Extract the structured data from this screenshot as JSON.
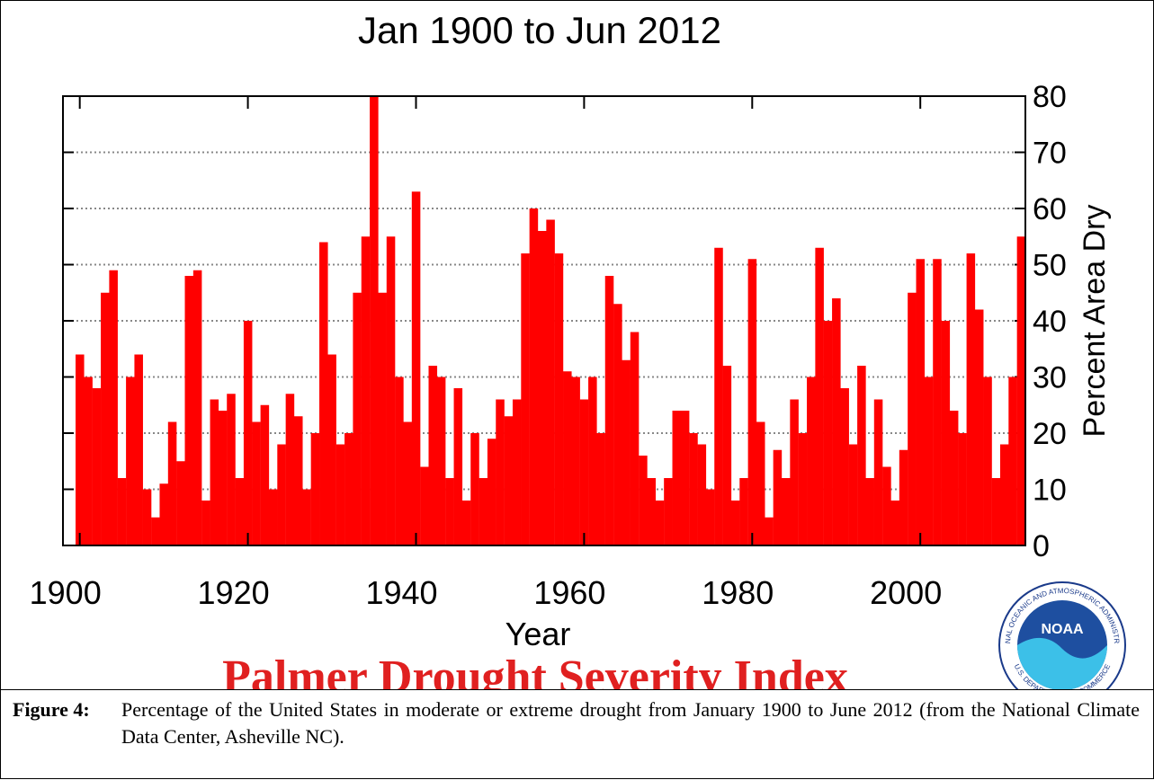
{
  "chart_data": {
    "type": "bar",
    "title": "Jan 1900 to Jun 2012",
    "x_label": "Year",
    "y_label": "Percent Area Dry",
    "banner": "Palmer Drought Severity Index",
    "color": "#ff0000",
    "grid": true,
    "x": [
      1900,
      1901,
      1902,
      1903,
      1904,
      1905,
      1906,
      1907,
      1908,
      1909,
      1910,
      1911,
      1912,
      1913,
      1914,
      1915,
      1916,
      1917,
      1918,
      1919,
      1920,
      1921,
      1922,
      1923,
      1924,
      1925,
      1926,
      1927,
      1928,
      1929,
      1930,
      1931,
      1932,
      1933,
      1934,
      1935,
      1936,
      1937,
      1938,
      1939,
      1940,
      1941,
      1942,
      1943,
      1944,
      1945,
      1946,
      1947,
      1948,
      1949,
      1950,
      1951,
      1952,
      1953,
      1954,
      1955,
      1956,
      1957,
      1958,
      1959,
      1960,
      1961,
      1962,
      1963,
      1964,
      1965,
      1966,
      1967,
      1968,
      1969,
      1970,
      1971,
      1972,
      1973,
      1974,
      1975,
      1976,
      1977,
      1978,
      1979,
      1980,
      1981,
      1982,
      1983,
      1984,
      1985,
      1986,
      1987,
      1988,
      1989,
      1990,
      1991,
      1992,
      1993,
      1994,
      1995,
      1996,
      1997,
      1998,
      1999,
      2000,
      2001,
      2002,
      2003,
      2004,
      2005,
      2006,
      2007,
      2008,
      2009,
      2010,
      2011,
      2012
    ],
    "values": [
      34,
      30,
      28,
      45,
      49,
      12,
      30,
      34,
      10,
      5,
      11,
      22,
      15,
      48,
      49,
      8,
      26,
      24,
      27,
      12,
      40,
      22,
      25,
      10,
      18,
      27,
      23,
      10,
      20,
      54,
      34,
      18,
      20,
      45,
      55,
      80,
      45,
      55,
      30,
      22,
      63,
      14,
      32,
      30,
      12,
      28,
      8,
      20,
      12,
      19,
      26,
      23,
      26,
      52,
      60,
      56,
      58,
      52,
      31,
      30,
      26,
      30,
      20,
      48,
      43,
      33,
      38,
      16,
      12,
      8,
      12,
      24,
      24,
      20,
      18,
      10,
      53,
      32,
      8,
      12,
      51,
      22,
      5,
      17,
      12,
      26,
      20,
      30,
      53,
      40,
      44,
      28,
      18,
      32,
      12,
      26,
      14,
      8,
      17,
      45,
      51,
      30,
      51,
      40,
      24,
      20,
      52,
      42,
      30,
      12,
      18,
      30,
      55
    ],
    "xlim": [
      1898,
      2012.5
    ],
    "xticks": [
      1900,
      1920,
      1940,
      1960,
      1980,
      2000
    ],
    "ylim": [
      0,
      80
    ],
    "yticks": [
      0,
      10,
      20,
      30,
      40,
      50,
      60,
      70,
      80
    ]
  },
  "logo": {
    "name": "NOAA",
    "ring_top": "NATIONAL OCEANIC AND ATMOSPHERIC ADMINISTRATION",
    "ring_bottom": "U.S. DEPARTMENT OF COMMERCE"
  },
  "caption": {
    "label": "Figure 4:",
    "text": "Percentage of the United States in moderate or extreme drought from January 1900 to June 2012 (from the National Climate Data Center, Asheville NC)."
  }
}
